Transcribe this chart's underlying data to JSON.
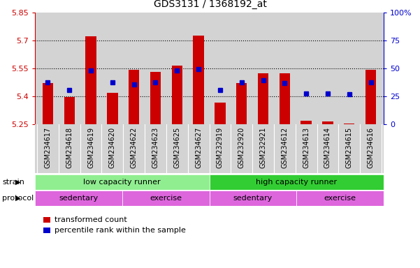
{
  "title": "GDS3131 / 1368192_at",
  "samples": [
    "GSM234617",
    "GSM234618",
    "GSM234619",
    "GSM234620",
    "GSM234622",
    "GSM234623",
    "GSM234625",
    "GSM234627",
    "GSM232919",
    "GSM232920",
    "GSM232921",
    "GSM234612",
    "GSM234613",
    "GSM234614",
    "GSM234615",
    "GSM234616"
  ],
  "red_values": [
    5.47,
    5.395,
    5.722,
    5.42,
    5.543,
    5.53,
    5.565,
    5.725,
    5.365,
    5.47,
    5.525,
    5.525,
    5.268,
    5.265,
    5.255,
    5.542
  ],
  "blue_values": [
    5.475,
    5.435,
    5.537,
    5.475,
    5.462,
    5.475,
    5.54,
    5.545,
    5.435,
    5.475,
    5.487,
    5.47,
    5.415,
    5.415,
    5.412,
    5.476
  ],
  "ymin": 5.25,
  "ymax": 5.85,
  "yticks": [
    5.25,
    5.4,
    5.55,
    5.7,
    5.85
  ],
  "ytick_labels": [
    "5.25",
    "5.4",
    "5.55",
    "5.7",
    "5.85"
  ],
  "y2ticks": [
    0,
    25,
    50,
    75,
    100
  ],
  "y2tick_labels": [
    "0",
    "25",
    "50",
    "75",
    "100%"
  ],
  "grid_lines": [
    5.4,
    5.55,
    5.7
  ],
  "bar_color": "#cc0000",
  "blue_color": "#0000cc",
  "red_axis_color": "#cc0000",
  "blue_axis_color": "#0000cc",
  "bg_color": "#d3d3d3",
  "strain_low_color": "#90EE90",
  "strain_high_color": "#32CD32",
  "protocol_color": "#DD66DD",
  "bar_width": 0.5
}
